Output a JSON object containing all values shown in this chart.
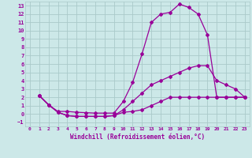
{
  "xlabel": "Windchill (Refroidissement éolien,°C)",
  "bg_color": "#cce8e8",
  "grid_color": "#aacaca",
  "line_color": "#990099",
  "xlim": [
    -0.5,
    23.5
  ],
  "ylim": [
    -1.5,
    13.5
  ],
  "xticks": [
    0,
    1,
    2,
    3,
    4,
    5,
    6,
    7,
    8,
    9,
    10,
    11,
    12,
    13,
    14,
    15,
    16,
    17,
    18,
    19,
    20,
    21,
    22,
    23
  ],
  "yticks": [
    -1,
    0,
    1,
    2,
    3,
    4,
    5,
    6,
    7,
    8,
    9,
    10,
    11,
    12,
    13
  ],
  "curve1_x": [
    1,
    2,
    3,
    4,
    5,
    6,
    7,
    8,
    9,
    10,
    11,
    12,
    13,
    14,
    15,
    16,
    17,
    18,
    19,
    20,
    21,
    22,
    23
  ],
  "curve1_y": [
    2.2,
    1.1,
    0.3,
    0.3,
    0.2,
    0.15,
    0.1,
    0.1,
    0.1,
    1.5,
    3.8,
    7.2,
    11.0,
    12.0,
    12.2,
    13.2,
    12.8,
    12.0,
    9.5,
    2.0,
    2.0,
    2.0,
    2.0
  ],
  "curve2_x": [
    1,
    2,
    3,
    4,
    5,
    6,
    7,
    8,
    9,
    10,
    11,
    12,
    13,
    14,
    15,
    16,
    17,
    18,
    19,
    20,
    21,
    22,
    23
  ],
  "curve2_y": [
    2.2,
    1.1,
    0.2,
    -0.2,
    -0.3,
    -0.3,
    -0.3,
    -0.3,
    -0.2,
    0.5,
    1.5,
    2.5,
    3.5,
    4.0,
    4.5,
    5.0,
    5.5,
    5.8,
    5.8,
    4.0,
    3.5,
    3.0,
    2.0
  ],
  "curve3_x": [
    1,
    2,
    3,
    4,
    5,
    6,
    7,
    8,
    9,
    10,
    11,
    12,
    13,
    14,
    15,
    16,
    17,
    18,
    19,
    20,
    21,
    22,
    23
  ],
  "curve3_y": [
    2.2,
    1.1,
    0.2,
    -0.2,
    -0.3,
    -0.3,
    -0.3,
    -0.3,
    -0.2,
    0.2,
    0.3,
    0.5,
    1.0,
    1.5,
    2.0,
    2.0,
    2.0,
    2.0,
    2.0,
    2.0,
    2.0,
    2.0,
    2.0
  ]
}
